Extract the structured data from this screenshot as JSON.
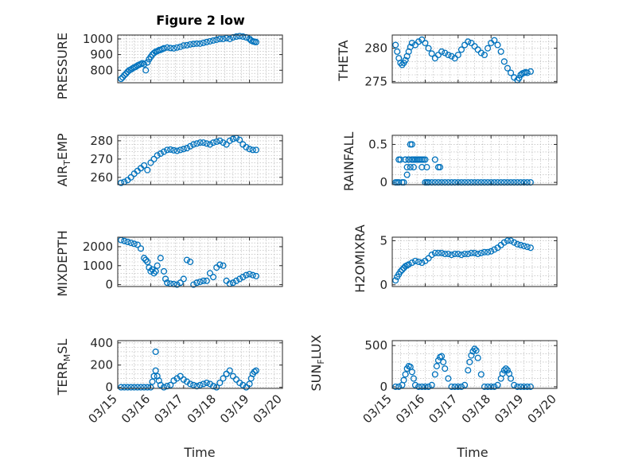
{
  "figure": {
    "title": "Figure 2 low",
    "xlabel": "Time",
    "x_tick_labels": [
      "03/15",
      "03/16",
      "03/17",
      "03/18",
      "03/19",
      "03/20"
    ],
    "marker_color": "#0072bd"
  },
  "chart_data": [
    {
      "id": "pressure",
      "type": "scatter",
      "ylabel": "PRESSURE",
      "ylim": [
        720,
        1025
      ],
      "yticks": [
        800,
        900,
        1000
      ],
      "xlim": [
        0,
        5
      ],
      "grid": true,
      "x": [
        0.1,
        0.15,
        0.2,
        0.25,
        0.3,
        0.35,
        0.4,
        0.45,
        0.5,
        0.55,
        0.6,
        0.65,
        0.7,
        0.75,
        0.8,
        0.85,
        0.9,
        0.95,
        1.0,
        1.05,
        1.1,
        1.15,
        1.2,
        1.25,
        1.3,
        1.35,
        1.4,
        1.5,
        1.6,
        1.7,
        1.8,
        1.9,
        2.0,
        2.1,
        2.2,
        2.3,
        2.4,
        2.5,
        2.6,
        2.7,
        2.8,
        2.9,
        3.0,
        3.1,
        3.2,
        3.3,
        3.4,
        3.5,
        3.6,
        3.7,
        3.8,
        3.9,
        4.0,
        4.05,
        4.1,
        4.15,
        4.2
      ],
      "y": [
        745,
        755,
        768,
        778,
        790,
        800,
        805,
        812,
        818,
        822,
        830,
        835,
        840,
        845,
        838,
        800,
        850,
        870,
        885,
        900,
        910,
        918,
        922,
        928,
        930,
        935,
        940,
        945,
        942,
        940,
        945,
        950,
        958,
        960,
        965,
        968,
        970,
        970,
        975,
        980,
        985,
        990,
        995,
        1000,
        1000,
        1005,
        1000,
        1010,
        1015,
        1018,
        1015,
        1010,
        1000,
        990,
        985,
        982,
        980
      ]
    },
    {
      "id": "theta",
      "type": "scatter",
      "ylabel": "THETA",
      "ylim": [
        274.8,
        282
      ],
      "yticks": [
        275,
        280
      ],
      "xlim": [
        0,
        5
      ],
      "grid": true,
      "x": [
        0.1,
        0.15,
        0.2,
        0.25,
        0.3,
        0.35,
        0.4,
        0.45,
        0.5,
        0.55,
        0.6,
        0.7,
        0.8,
        0.9,
        1.0,
        1.1,
        1.2,
        1.3,
        1.4,
        1.5,
        1.6,
        1.7,
        1.8,
        1.9,
        2.0,
        2.1,
        2.2,
        2.3,
        2.4,
        2.5,
        2.6,
        2.7,
        2.8,
        2.9,
        3.0,
        3.1,
        3.2,
        3.3,
        3.4,
        3.5,
        3.6,
        3.7,
        3.8,
        3.85,
        3.9,
        3.95,
        4.0,
        4.05,
        4.1,
        4.2
      ],
      "y": [
        280.5,
        279.5,
        278.5,
        277.8,
        277.5,
        277.8,
        278.2,
        278.8,
        279.5,
        280.2,
        280.8,
        280.5,
        281.0,
        281.3,
        280.8,
        280.0,
        279.2,
        278.5,
        279.0,
        279.5,
        279.3,
        279.0,
        278.8,
        278.5,
        279.0,
        279.8,
        280.5,
        281.0,
        280.8,
        280.3,
        279.8,
        279.3,
        279.0,
        280.0,
        280.8,
        281.2,
        280.5,
        279.5,
        278.0,
        277.0,
        276.3,
        275.6,
        275.2,
        275.5,
        276.0,
        276.2,
        276.3,
        276.4,
        276.3,
        276.5
      ]
    },
    {
      "id": "air_temp",
      "type": "scatter",
      "ylabel": "AIR_TEMP",
      "ylim": [
        256,
        283
      ],
      "yticks": [
        260,
        270,
        280
      ],
      "xlim": [
        0,
        5
      ],
      "grid": true,
      "x": [
        0.1,
        0.2,
        0.3,
        0.4,
        0.5,
        0.6,
        0.7,
        0.8,
        0.9,
        1.0,
        1.1,
        1.2,
        1.3,
        1.4,
        1.5,
        1.6,
        1.7,
        1.8,
        1.9,
        2.0,
        2.1,
        2.2,
        2.3,
        2.4,
        2.5,
        2.6,
        2.7,
        2.8,
        2.9,
        3.0,
        3.1,
        3.2,
        3.3,
        3.4,
        3.5,
        3.6,
        3.7,
        3.8,
        3.9,
        4.0,
        4.1,
        4.2
      ],
      "y": [
        257,
        257.5,
        258.5,
        260,
        262,
        263.5,
        265,
        266.5,
        264,
        268,
        270,
        272,
        273,
        274,
        275,
        275.2,
        274.8,
        274.5,
        275,
        275.5,
        276,
        277,
        278,
        278.5,
        279,
        279,
        278.5,
        278,
        279,
        279.5,
        280,
        279,
        278,
        280,
        281,
        281.5,
        280.5,
        278,
        276.5,
        275.5,
        275,
        275
      ]
    },
    {
      "id": "rainfall",
      "type": "scatter",
      "ylabel": "RAINFALL",
      "ylim": [
        -0.03,
        0.62
      ],
      "yticks": [
        0,
        0.5
      ],
      "xlim": [
        0,
        5
      ],
      "grid": true,
      "x": [
        0.1,
        0.15,
        0.2,
        0.25,
        0.3,
        0.35,
        0.4,
        0.45,
        0.5,
        0.55,
        0.6,
        0.65,
        0.7,
        0.75,
        0.8,
        0.85,
        0.9,
        0.95,
        1.0,
        1.05,
        1.1,
        1.2,
        1.3,
        1.4,
        1.5,
        1.6,
        1.7,
        1.8,
        1.9,
        2.0,
        2.1,
        2.2,
        2.3,
        2.4,
        2.5,
        2.6,
        2.7,
        2.8,
        2.9,
        3.0,
        3.1,
        3.2,
        3.3,
        3.4,
        3.5,
        3.6,
        3.7,
        3.8,
        3.9,
        4.0,
        4.1,
        4.2,
        0.2,
        0.4,
        0.5,
        0.6,
        0.7,
        0.8,
        0.9,
        1.0,
        1.05,
        0.45,
        0.55,
        0.6,
        0.5,
        0.65,
        1.3,
        1.4,
        1.45
      ],
      "y": [
        0,
        0,
        0,
        0.3,
        0,
        0,
        0.3,
        0.2,
        0.3,
        0.5,
        0.3,
        0.3,
        0.3,
        0.3,
        0.3,
        0.3,
        0.2,
        0.3,
        0,
        0,
        0,
        0,
        0,
        0,
        0,
        0,
        0,
        0,
        0,
        0,
        0,
        0,
        0,
        0,
        0,
        0,
        0,
        0,
        0,
        0,
        0,
        0,
        0,
        0,
        0,
        0,
        0,
        0,
        0,
        0,
        0,
        0,
        0.3,
        0.3,
        0.3,
        0.3,
        0.3,
        0.3,
        0.3,
        0.3,
        0.2,
        0.1,
        0.2,
        0.5,
        0.3,
        0.2,
        0.3,
        0.2,
        0.2
      ]
    },
    {
      "id": "mixdepth",
      "type": "scatter",
      "ylabel": "MIXDEPTH",
      "ylim": [
        -100,
        2500
      ],
      "yticks": [
        0,
        1000,
        2000
      ],
      "xlim": [
        0,
        5
      ],
      "grid": true,
      "x": [
        0.1,
        0.2,
        0.3,
        0.4,
        0.5,
        0.6,
        0.7,
        0.8,
        0.85,
        0.9,
        0.95,
        1.0,
        1.05,
        1.1,
        1.15,
        1.2,
        1.3,
        1.4,
        1.45,
        1.5,
        1.6,
        1.7,
        1.8,
        1.9,
        2.0,
        2.1,
        2.2,
        2.3,
        2.4,
        2.5,
        2.6,
        2.7,
        2.8,
        2.9,
        3.0,
        3.1,
        3.2,
        3.3,
        3.4,
        3.5,
        3.6,
        3.7,
        3.8,
        3.9,
        4.0,
        4.1,
        4.2
      ],
      "y": [
        2350,
        2300,
        2250,
        2200,
        2150,
        2100,
        1900,
        1400,
        1300,
        1200,
        900,
        700,
        800,
        600,
        700,
        1000,
        1400,
        700,
        300,
        100,
        50,
        30,
        0,
        100,
        300,
        1300,
        1200,
        0,
        100,
        150,
        200,
        200,
        600,
        400,
        900,
        1050,
        1000,
        200,
        50,
        100,
        200,
        300,
        400,
        500,
        550,
        500,
        450
      ]
    },
    {
      "id": "h2omixra",
      "type": "scatter",
      "ylabel": "H2OMIXRA",
      "ylim": [
        -0.2,
        5.4
      ],
      "yticks": [
        0,
        5
      ],
      "xlim": [
        0,
        5
      ],
      "grid": true,
      "x": [
        0.1,
        0.15,
        0.2,
        0.25,
        0.3,
        0.35,
        0.4,
        0.45,
        0.5,
        0.6,
        0.7,
        0.8,
        0.9,
        1.0,
        1.1,
        1.2,
        1.3,
        1.4,
        1.5,
        1.6,
        1.7,
        1.8,
        1.9,
        2.0,
        2.1,
        2.2,
        2.3,
        2.4,
        2.5,
        2.6,
        2.7,
        2.8,
        2.9,
        3.0,
        3.1,
        3.2,
        3.3,
        3.4,
        3.5,
        3.6,
        3.7,
        3.8,
        3.9,
        4.0,
        4.1,
        4.2
      ],
      "y": [
        0.5,
        0.9,
        1.2,
        1.5,
        1.7,
        1.9,
        2.1,
        2.2,
        2.3,
        2.5,
        2.7,
        2.6,
        2.5,
        2.7,
        3.0,
        3.4,
        3.6,
        3.6,
        3.6,
        3.5,
        3.5,
        3.4,
        3.5,
        3.5,
        3.4,
        3.5,
        3.5,
        3.6,
        3.6,
        3.5,
        3.6,
        3.7,
        3.7,
        3.8,
        4.0,
        4.2,
        4.5,
        4.8,
        5.0,
        5.0,
        4.8,
        4.6,
        4.5,
        4.4,
        4.3,
        4.2
      ]
    },
    {
      "id": "terr_msl",
      "type": "scatter",
      "ylabel": "TERR_MSL",
      "ylim": [
        -10,
        420
      ],
      "yticks": [
        0,
        200,
        400
      ],
      "xlim": [
        0,
        5
      ],
      "grid": true,
      "x": [
        0.1,
        0.2,
        0.3,
        0.4,
        0.5,
        0.6,
        0.7,
        0.8,
        0.9,
        1.0,
        1.05,
        1.1,
        1.15,
        1.2,
        1.25,
        1.3,
        1.4,
        1.5,
        1.6,
        1.7,
        1.8,
        1.9,
        2.0,
        2.1,
        2.2,
        2.3,
        2.4,
        2.5,
        2.6,
        2.7,
        2.8,
        2.9,
        3.0,
        3.1,
        3.2,
        3.3,
        3.4,
        3.5,
        3.6,
        3.7,
        3.8,
        3.9,
        4.0,
        4.05,
        4.1,
        4.15,
        4.2,
        1.15,
        3.3
      ],
      "y": [
        0,
        0,
        0,
        0,
        0,
        0,
        0,
        0,
        0,
        0,
        50,
        100,
        150,
        100,
        60,
        20,
        0,
        10,
        20,
        60,
        80,
        100,
        70,
        50,
        30,
        20,
        10,
        20,
        30,
        40,
        30,
        10,
        0,
        40,
        80,
        120,
        150,
        100,
        70,
        40,
        20,
        0,
        30,
        80,
        120,
        140,
        150,
        320,
        120
      ]
    },
    {
      "id": "sun_flux",
      "type": "scatter",
      "ylabel": "SUN_FLUX",
      "ylim": [
        -20,
        560
      ],
      "yticks": [
        0,
        500
      ],
      "xlim": [
        0,
        5
      ],
      "grid": true,
      "x": [
        0.1,
        0.2,
        0.3,
        0.35,
        0.4,
        0.45,
        0.5,
        0.55,
        0.6,
        0.65,
        0.7,
        0.8,
        0.9,
        1.0,
        1.1,
        1.2,
        1.3,
        1.35,
        1.4,
        1.45,
        1.5,
        1.55,
        1.6,
        1.7,
        1.8,
        1.9,
        2.0,
        2.1,
        2.2,
        2.3,
        2.35,
        2.4,
        2.45,
        2.5,
        2.55,
        2.6,
        2.7,
        2.8,
        2.9,
        3.0,
        3.1,
        3.2,
        3.3,
        3.35,
        3.4,
        3.45,
        3.5,
        3.55,
        3.6,
        3.7,
        3.8,
        3.9,
        4.0,
        4.1,
        4.2
      ],
      "y": [
        0,
        0,
        20,
        80,
        150,
        220,
        250,
        240,
        180,
        100,
        20,
        0,
        0,
        0,
        0,
        20,
        150,
        250,
        320,
        360,
        370,
        300,
        220,
        100,
        0,
        0,
        0,
        0,
        20,
        200,
        300,
        380,
        430,
        460,
        440,
        350,
        150,
        0,
        0,
        0,
        0,
        20,
        100,
        160,
        200,
        220,
        200,
        160,
        100,
        20,
        0,
        0,
        0,
        0,
        0
      ]
    }
  ]
}
